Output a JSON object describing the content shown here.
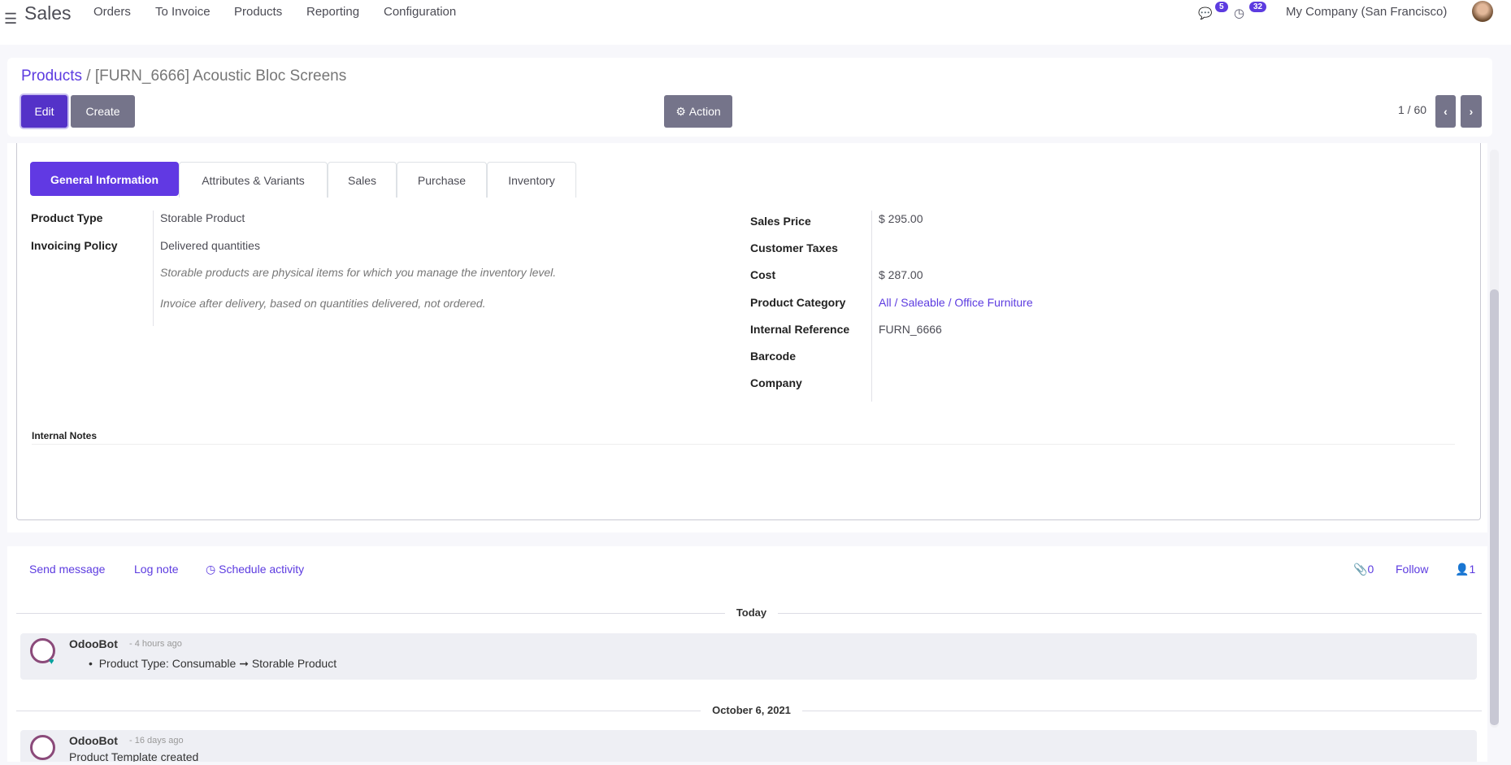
{
  "navbar": {
    "app": "Sales",
    "menu": [
      "Orders",
      "To Invoice",
      "Products",
      "Reporting",
      "Configuration"
    ],
    "messages_count": "5",
    "activities_count": "32",
    "company": "My Company (San Francisco)"
  },
  "control": {
    "breadcrumb_parent": "Products",
    "breadcrumb_sep": "/",
    "record_title": "[FURN_6666] Acoustic Bloc Screens",
    "edit": "Edit",
    "create": "Create",
    "action": "Action",
    "pager": "1 / 60"
  },
  "tabs": [
    "General Information",
    "Attributes & Variants",
    "Sales",
    "Purchase",
    "Inventory"
  ],
  "left_fields": [
    {
      "label": "Product Type",
      "value": "Storable Product"
    },
    {
      "label": "Invoicing Policy",
      "value": "Delivered quantities"
    }
  ],
  "help": [
    "Storable products are physical items for which you manage the inventory level.",
    "Invoice after delivery, based on quantities delivered, not ordered."
  ],
  "right_fields": [
    {
      "label": "Sales Price",
      "value": "$ 295.00"
    },
    {
      "label": "Customer Taxes",
      "value": ""
    },
    {
      "label": "Cost",
      "value": "$ 287.00"
    },
    {
      "label": "Product Category",
      "value": "All / Saleable / Office Furniture"
    },
    {
      "label": "Internal Reference",
      "value": "FURN_6666"
    },
    {
      "label": "Barcode",
      "value": ""
    },
    {
      "label": "Company",
      "value": ""
    }
  ],
  "internal_notes": "Internal Notes",
  "chatter": {
    "send_message": "Send message",
    "log_note": "Log note",
    "schedule_activity": "Schedule activity",
    "attachments": "0",
    "follow": "Follow",
    "followers": "1",
    "groups": [
      {
        "date": "Today",
        "author": "OdooBot",
        "time": "- 4 hours ago",
        "text": "Product Type: Consumable ➞ Storable Product"
      },
      {
        "date": "October 6, 2021",
        "author": "OdooBot",
        "time": "- 16 days ago",
        "text": "Product Template created"
      }
    ]
  },
  "colors": {
    "accent": "#5c3be0",
    "button_gray": "#75748a",
    "link": "#5c3be0"
  }
}
